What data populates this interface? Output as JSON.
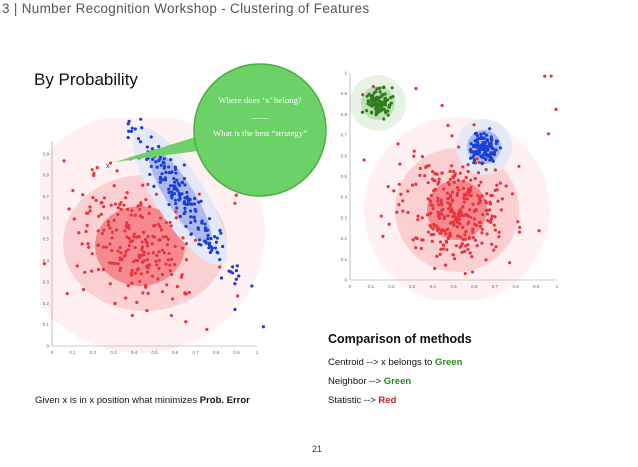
{
  "slide": {
    "title": "3 | Number Recognition Workshop - Clustering of Features",
    "section_heading": "By Probability",
    "page_number": "21"
  },
  "bubble": {
    "line1": "Where does ‘x’ belong?",
    "divider": "——",
    "line2": "What is the best “strategy”"
  },
  "left_plot": {
    "point_marker": "x",
    "x_ticks": [
      "0",
      "0.1",
      "0.2",
      "0.3",
      "0.4",
      "0.5",
      "0.6",
      "0.7",
      "0.8",
      "0.9",
      "1"
    ],
    "y_ticks": [
      "0",
      "0.1",
      "0.2",
      "0.3",
      "0.4",
      "0.5",
      "0.6",
      "0.7",
      "0.8",
      "0.9"
    ]
  },
  "right_plot": {
    "x_ticks": [
      "0",
      "0.1",
      "0.2",
      "0.3",
      "0.4",
      "0.5",
      "0.6",
      "0.7",
      "0.8",
      "0.9",
      "1"
    ],
    "y_ticks": [
      "0",
      "0.1",
      "0.2",
      "0.3",
      "0.4",
      "0.5",
      "0.6",
      "0.7",
      "0.8",
      "0.9",
      "1"
    ]
  },
  "caption": {
    "prefix": "Given x is in x position what minimizes ",
    "bold": "Prob. Error"
  },
  "comparison": {
    "heading": "Comparison of methods",
    "centroid_prefix": "Centroid  --> x belongs to ",
    "centroid_value": "Green",
    "neighbor_prefix": "Neighbor --> ",
    "neighbor_value": "Green",
    "statistic_prefix": "Statistic --> ",
    "statistic_value": "Red"
  },
  "colors": {
    "red": "#e8343c",
    "blue": "#1a3fd6",
    "green": "#2e7d1f",
    "bubble": "#6cd166",
    "bubble_outline": "#4caf45"
  }
}
